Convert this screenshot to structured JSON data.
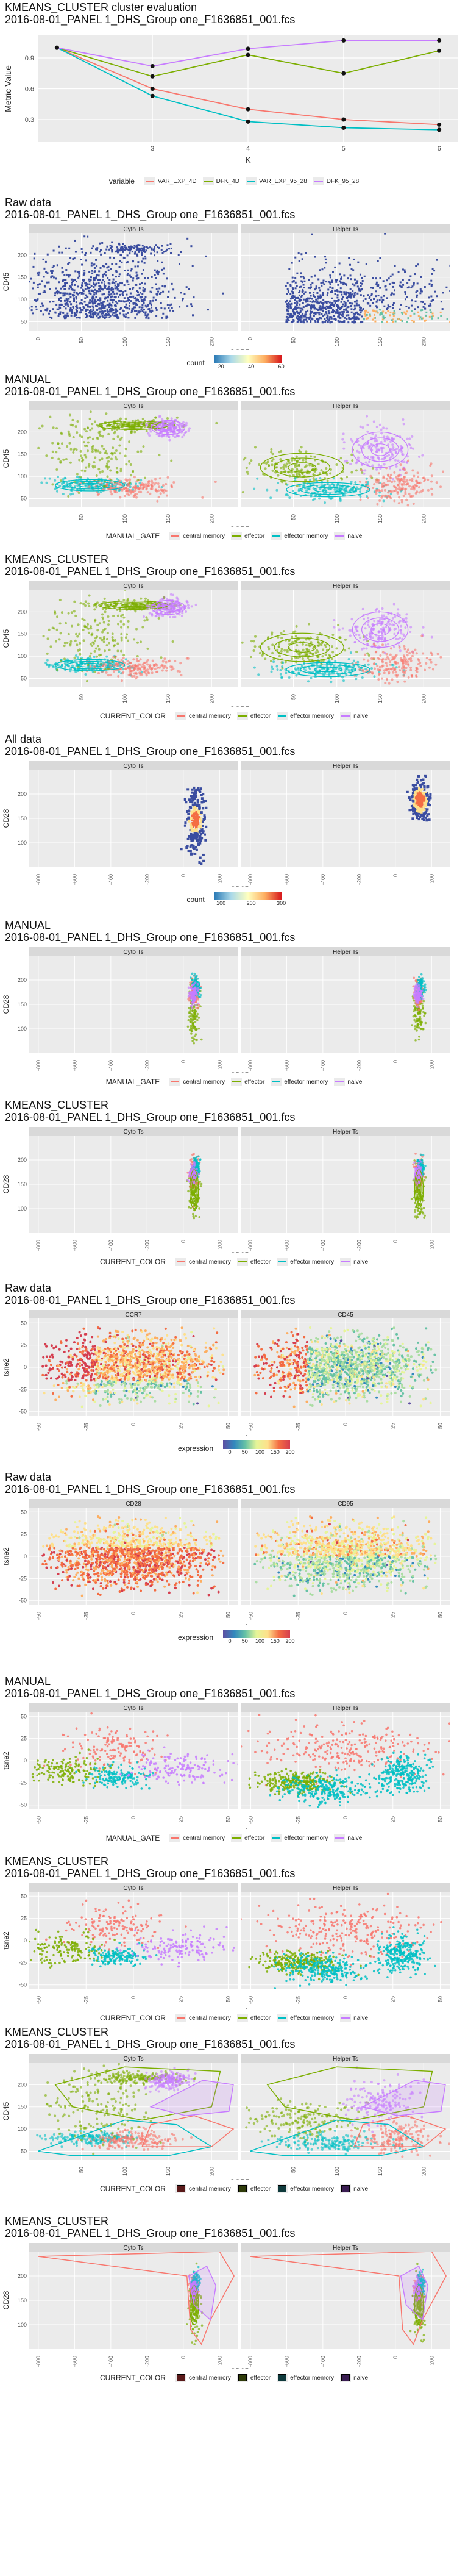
{
  "kmeans_eval": {
    "title_line1": "KMEANS_CLUSTER cluster evaluation",
    "title_line2": "2016-08-01_PANEL 1_DHS_Group one_F1636851_001.fcs",
    "legend_title": "variable"
  },
  "panels_common": {
    "file_line": "2016-08-01_PANEL 1_DHS_Group one_F1636851_001.fcs",
    "facet_cyto": "Cyto Ts",
    "facet_helper": "Helper Ts"
  },
  "blocks": [
    {
      "id": "b1",
      "title1": "Raw data",
      "xlabel": "CCR7",
      "ylabel": "CD45",
      "legend_kind": "count",
      "legend_title": "count",
      "legend_ticks": [
        "20",
        "40",
        "60"
      ]
    },
    {
      "id": "b2",
      "title1": "MANUAL",
      "xlabel": "CCR7",
      "ylabel": "CD45",
      "legend_kind": "gate",
      "legend_title": "MANUAL_GATE"
    },
    {
      "id": "b3",
      "title1": "KMEANS_CLUSTER",
      "xlabel": "CCR7",
      "ylabel": "CD45",
      "legend_kind": "gate",
      "legend_title": "CURRENT_COLOR"
    },
    {
      "id": "b4",
      "title1": "All data",
      "xlabel": "CD95",
      "ylabel": "CD28",
      "legend_kind": "count",
      "legend_title": "count",
      "legend_ticks": [
        "100",
        "200",
        "300"
      ]
    },
    {
      "id": "b5",
      "title1": "MANUAL",
      "xlabel": "CD95",
      "ylabel": "CD28",
      "legend_kind": "gate",
      "legend_title": "MANUAL_GATE"
    },
    {
      "id": "b6",
      "title1": "KMEANS_CLUSTER",
      "xlabel": "CD95",
      "ylabel": "CD28",
      "legend_kind": "gate",
      "legend_title": "CURRENT_COLOR"
    },
    {
      "id": "b7",
      "title1": "Raw data",
      "xlabel": "tsne1",
      "ylabel": "tsne2",
      "legend_kind": "expr",
      "legend_title": "expression",
      "legend_ticks": [
        "0",
        "50",
        "100",
        "150",
        "200"
      ],
      "facet_left": "CCR7",
      "facet_right": "CD45"
    },
    {
      "id": "b8",
      "title1": "Raw data",
      "xlabel": "tsne1",
      "ylabel": "tsne2",
      "legend_kind": "expr",
      "legend_title": "expression",
      "legend_ticks": [
        "0",
        "50",
        "100",
        "150",
        "200"
      ],
      "facet_left": "CD28",
      "facet_right": "CD95"
    },
    {
      "id": "b9",
      "title1": "MANUAL",
      "xlabel": "tsne1",
      "ylabel": "tsne2",
      "legend_kind": "gate",
      "legend_title": "MANUAL_GATE"
    },
    {
      "id": "b10",
      "title1": "KMEANS_CLUSTER",
      "xlabel": "tsne1",
      "ylabel": "tsne2",
      "legend_kind": "gate",
      "legend_title": "CURRENT_COLOR"
    },
    {
      "id": "b11",
      "title1": "KMEANS_CLUSTER",
      "xlabel": "CCR7",
      "ylabel": "CD45",
      "legend_kind": "fill",
      "legend_title": "CURRENT_COLOR"
    },
    {
      "id": "b12",
      "title1": "KMEANS_CLUSTER",
      "xlabel": "CD95",
      "ylabel": "CD28",
      "legend_kind": "fill",
      "legend_title": "CURRENT_COLOR"
    }
  ],
  "gate_labels": [
    "central memory",
    "effector",
    "effector memory",
    "naive"
  ],
  "colors": {
    "central_memory": "#f8766d",
    "effector": "#7cae00",
    "effector_memory": "#00bfc4",
    "naive": "#c77cff",
    "count_low": "#2c7bb6",
    "count_high": "#d7191c",
    "panel_bg": "#ebebeb",
    "strip_bg": "#d9d9d9"
  },
  "chart_data": [
    {
      "type": "line",
      "title": "KMEANS_CLUSTER cluster evaluation",
      "xlabel": "K",
      "ylabel": "Metric Value",
      "x": [
        2,
        3,
        4,
        5,
        6
      ],
      "xticks": [
        "3",
        "4",
        "5",
        "6"
      ],
      "yticks": [
        "0.3",
        "0.6",
        "0.9"
      ],
      "ylim": [
        0.08,
        1.12
      ],
      "legend_placement": "bottom",
      "series": [
        {
          "name": "VAR_EXP_4D",
          "color": "#f8766d",
          "values": [
            1.0,
            0.6,
            0.4,
            0.3,
            0.25
          ]
        },
        {
          "name": "DFK_4D",
          "color": "#7cae00",
          "values": [
            1.0,
            0.72,
            0.93,
            0.75,
            0.97
          ]
        },
        {
          "name": "VAR_EXP_95_28",
          "color": "#00bfc4",
          "values": [
            1.0,
            0.53,
            0.28,
            0.22,
            0.2
          ]
        },
        {
          "name": "DFK_95_28",
          "color": "#c77cff",
          "values": [
            1.0,
            0.82,
            0.99,
            1.07,
            1.07
          ]
        }
      ]
    },
    {
      "type": "heatmap",
      "title": "Raw data",
      "xlabel": "CCR7",
      "ylabel": "CD45",
      "xticks": [
        "0",
        "50",
        "100",
        "150",
        "200"
      ],
      "yticks": [
        "50",
        "100",
        "150",
        "200"
      ],
      "xlim": [
        -10,
        230
      ],
      "ylim": [
        30,
        250
      ],
      "legend_title": "count",
      "legend_ticks": [
        "20",
        "40",
        "60"
      ]
    },
    {
      "type": "scatter",
      "title": "MANUAL",
      "xlabel": "CCR7",
      "ylabel": "CD45",
      "xticks": [
        "50",
        "100",
        "150",
        "200"
      ],
      "yticks": [
        "50",
        "100",
        "150",
        "200"
      ],
      "xlim": [
        -10,
        230
      ],
      "ylim": [
        30,
        250
      ],
      "legend_title": "MANUAL_GATE"
    },
    {
      "type": "scatter",
      "title": "KMEANS_CLUSTER",
      "xlabel": "CCR7",
      "ylabel": "CD45",
      "xticks": [
        "50",
        "100",
        "150",
        "200"
      ],
      "yticks": [
        "50",
        "100",
        "150",
        "200"
      ],
      "xlim": [
        -10,
        230
      ],
      "ylim": [
        30,
        250
      ],
      "legend_title": "CURRENT_COLOR"
    },
    {
      "type": "heatmap",
      "title": "All data",
      "xlabel": "CD95",
      "ylabel": "CD28",
      "xticks": [
        "-800",
        "-600",
        "-400",
        "-200",
        "0",
        "200"
      ],
      "yticks": [
        "100",
        "150",
        "200"
      ],
      "xlim": [
        -850,
        300
      ],
      "ylim": [
        50,
        250
      ],
      "legend_title": "count",
      "legend_ticks": [
        "100",
        "200",
        "300"
      ]
    },
    {
      "type": "scatter",
      "title": "MANUAL",
      "xlabel": "CD95",
      "ylabel": "CD28",
      "xticks": [
        "-800",
        "-600",
        "-400",
        "-200",
        "0",
        "200"
      ],
      "yticks": [
        "100",
        "150",
        "200"
      ],
      "xlim": [
        -850,
        300
      ],
      "ylim": [
        50,
        250
      ],
      "legend_title": "MANUAL_GATE"
    },
    {
      "type": "scatter",
      "title": "KMEANS_CLUSTER",
      "xlabel": "CD95",
      "ylabel": "CD28",
      "xticks": [
        "-800",
        "-600",
        "-400",
        "-200",
        "0",
        "200"
      ],
      "yticks": [
        "100",
        "150",
        "200"
      ],
      "xlim": [
        -850,
        300
      ],
      "ylim": [
        50,
        250
      ],
      "legend_title": "CURRENT_COLOR"
    },
    {
      "type": "scatter",
      "title": "Raw data",
      "xlabel": "tsne1",
      "ylabel": "tsne2",
      "xticks": [
        "-50",
        "-25",
        "0",
        "25",
        "50"
      ],
      "yticks": [
        "-50",
        "-25",
        "0",
        "25",
        "50"
      ],
      "xlim": [
        -55,
        55
      ],
      "ylim": [
        -55,
        55
      ],
      "facets": [
        "CCR7",
        "CD45"
      ],
      "legend_title": "expression",
      "legend_ticks": [
        "0",
        "50",
        "100",
        "150",
        "200"
      ]
    },
    {
      "type": "scatter",
      "title": "Raw data",
      "xlabel": "tsne1",
      "ylabel": "tsne2",
      "xticks": [
        "-50",
        "-25",
        "0",
        "25",
        "50"
      ],
      "yticks": [
        "-50",
        "-25",
        "0",
        "25",
        "50"
      ],
      "xlim": [
        -55,
        55
      ],
      "ylim": [
        -55,
        55
      ],
      "facets": [
        "CD28",
        "CD95"
      ],
      "legend_title": "expression",
      "legend_ticks": [
        "0",
        "50",
        "100",
        "150",
        "200"
      ]
    },
    {
      "type": "scatter",
      "title": "MANUAL",
      "xlabel": "tsne1",
      "ylabel": "tsne2",
      "xticks": [
        "-50",
        "-25",
        "0",
        "25",
        "50"
      ],
      "yticks": [
        "-50",
        "-25",
        "0",
        "25",
        "50"
      ],
      "xlim": [
        -55,
        55
      ],
      "ylim": [
        -55,
        55
      ],
      "legend_title": "MANUAL_GATE"
    },
    {
      "type": "scatter",
      "title": "KMEANS_CLUSTER",
      "xlabel": "tsne1",
      "ylabel": "tsne2",
      "xticks": [
        "-50",
        "-25",
        "0",
        "25",
        "50"
      ],
      "yticks": [
        "-50",
        "-25",
        "0",
        "25",
        "50"
      ],
      "xlim": [
        -55,
        55
      ],
      "ylim": [
        -55,
        55
      ],
      "legend_title": "CURRENT_COLOR"
    },
    {
      "type": "scatter",
      "title": "KMEANS_CLUSTER",
      "xlabel": "CCR7",
      "ylabel": "CD45",
      "xticks": [
        "50",
        "100",
        "150",
        "200"
      ],
      "yticks": [
        "50",
        "100",
        "150",
        "200"
      ],
      "xlim": [
        -10,
        230
      ],
      "ylim": [
        30,
        250
      ],
      "legend_title": "CURRENT_COLOR"
    },
    {
      "type": "scatter",
      "title": "KMEANS_CLUSTER",
      "xlabel": "CD95",
      "ylabel": "CD28",
      "xticks": [
        "-800",
        "-600",
        "-400",
        "-200",
        "0",
        "200"
      ],
      "yticks": [
        "100",
        "150",
        "200"
      ],
      "xlim": [
        -850,
        300
      ],
      "ylim": [
        50,
        250
      ],
      "legend_title": "CURRENT_COLOR"
    }
  ]
}
